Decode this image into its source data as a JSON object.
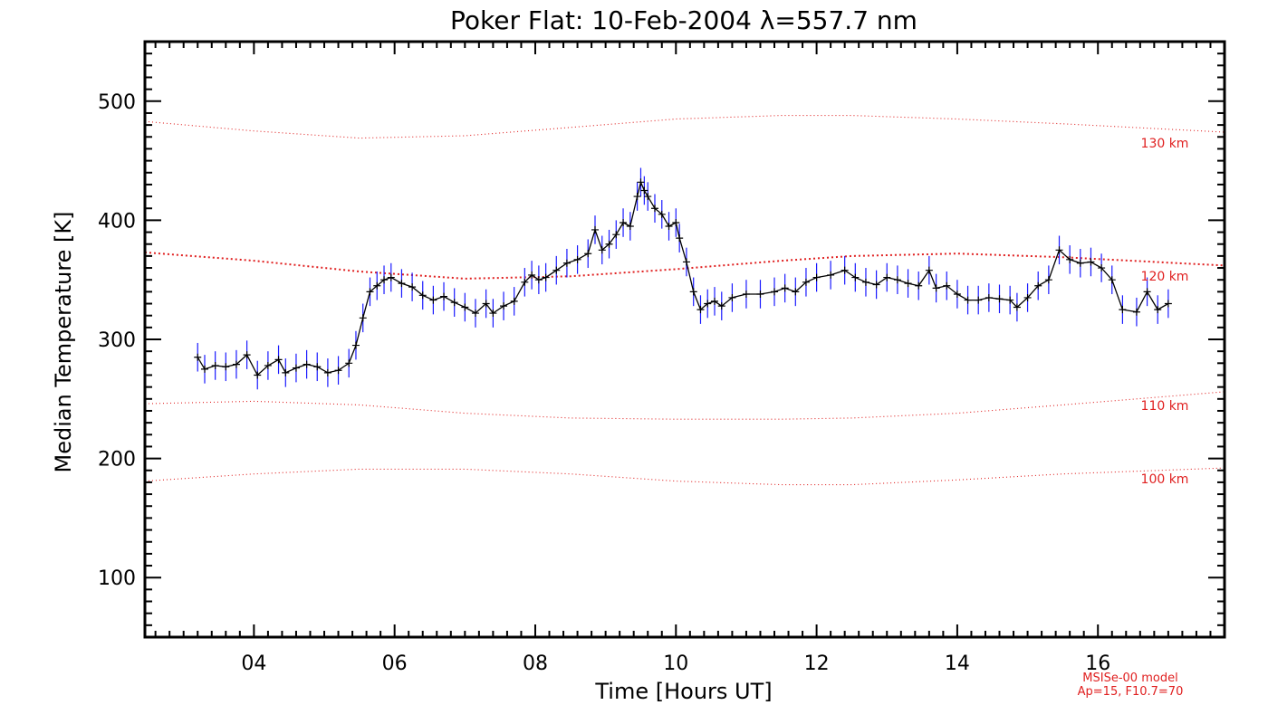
{
  "chart_data": {
    "type": "line",
    "title": "Poker Flat: 10-Feb-2004 λ=557.7 nm",
    "xlabel": "Time [Hours UT]",
    "ylabel": "Median Temperature [K]",
    "xlim": [
      2.45,
      17.8
    ],
    "ylim": [
      50,
      550
    ],
    "x_ticks": [
      4,
      6,
      8,
      10,
      12,
      14,
      16
    ],
    "x_tick_labels": [
      "04",
      "06",
      "08",
      "10",
      "12",
      "14",
      "16"
    ],
    "y_ticks": [
      100,
      200,
      300,
      400,
      500
    ],
    "y_tick_labels": [
      "100",
      "200",
      "300",
      "400",
      "500"
    ],
    "grid": false,
    "colors": {
      "data_line": "#000000",
      "error_bars": "#1a1aff",
      "model_lines": "#e02020",
      "axes": "#000000"
    },
    "series": [
      {
        "type": "line_with_error_bars",
        "error": 12,
        "points": [
          [
            3.2,
            285
          ],
          [
            3.3,
            275
          ],
          [
            3.45,
            278
          ],
          [
            3.6,
            277
          ],
          [
            3.75,
            279
          ],
          [
            3.9,
            287
          ],
          [
            4.05,
            270
          ],
          [
            4.2,
            278
          ],
          [
            4.35,
            283
          ],
          [
            4.45,
            272
          ],
          [
            4.6,
            276
          ],
          [
            4.75,
            279
          ],
          [
            4.9,
            277
          ],
          [
            5.05,
            272
          ],
          [
            5.2,
            274
          ],
          [
            5.35,
            280
          ],
          [
            5.45,
            295
          ],
          [
            5.55,
            318
          ],
          [
            5.65,
            340
          ],
          [
            5.75,
            345
          ],
          [
            5.85,
            350
          ],
          [
            5.95,
            352
          ],
          [
            6.1,
            347
          ],
          [
            6.25,
            344
          ],
          [
            6.4,
            337
          ],
          [
            6.55,
            333
          ],
          [
            6.7,
            336
          ],
          [
            6.85,
            331
          ],
          [
            7.0,
            327
          ],
          [
            7.15,
            322
          ],
          [
            7.3,
            330
          ],
          [
            7.4,
            322
          ],
          [
            7.55,
            328
          ],
          [
            7.7,
            332
          ],
          [
            7.85,
            348
          ],
          [
            7.95,
            354
          ],
          [
            8.05,
            350
          ],
          [
            8.15,
            352
          ],
          [
            8.3,
            358
          ],
          [
            8.45,
            364
          ],
          [
            8.6,
            367
          ],
          [
            8.75,
            372
          ],
          [
            8.85,
            392
          ],
          [
            8.95,
            375
          ],
          [
            9.05,
            380
          ],
          [
            9.15,
            388
          ],
          [
            9.25,
            398
          ],
          [
            9.35,
            395
          ],
          [
            9.45,
            420
          ],
          [
            9.5,
            432
          ],
          [
            9.55,
            425
          ],
          [
            9.6,
            420
          ],
          [
            9.7,
            410
          ],
          [
            9.8,
            405
          ],
          [
            9.9,
            395
          ],
          [
            10.0,
            398
          ],
          [
            10.05,
            385
          ],
          [
            10.15,
            365
          ],
          [
            10.25,
            340
          ],
          [
            10.35,
            325
          ],
          [
            10.45,
            330
          ],
          [
            10.55,
            332
          ],
          [
            10.65,
            328
          ],
          [
            10.8,
            335
          ],
          [
            11.0,
            338
          ],
          [
            11.2,
            338
          ],
          [
            11.4,
            340
          ],
          [
            11.55,
            343
          ],
          [
            11.7,
            340
          ],
          [
            11.85,
            348
          ],
          [
            12.0,
            352
          ],
          [
            12.2,
            354
          ],
          [
            12.4,
            358
          ],
          [
            12.55,
            352
          ],
          [
            12.7,
            348
          ],
          [
            12.85,
            346
          ],
          [
            13.0,
            352
          ],
          [
            13.15,
            350
          ],
          [
            13.3,
            347
          ],
          [
            13.45,
            345
          ],
          [
            13.6,
            358
          ],
          [
            13.7,
            343
          ],
          [
            13.85,
            345
          ],
          [
            14.0,
            338
          ],
          [
            14.15,
            333
          ],
          [
            14.3,
            333
          ],
          [
            14.45,
            335
          ],
          [
            14.6,
            334
          ],
          [
            14.75,
            333
          ],
          [
            14.85,
            327
          ],
          [
            15.0,
            335
          ],
          [
            15.15,
            345
          ],
          [
            15.3,
            350
          ],
          [
            15.45,
            375
          ],
          [
            15.6,
            367
          ],
          [
            15.75,
            364
          ],
          [
            15.9,
            365
          ],
          [
            16.05,
            360
          ],
          [
            16.2,
            350
          ],
          [
            16.35,
            325
          ],
          [
            16.55,
            323
          ],
          [
            16.7,
            340
          ],
          [
            16.85,
            325
          ],
          [
            17.0,
            330
          ]
        ]
      },
      {
        "name": "130 km",
        "type": "model",
        "points": [
          [
            2.45,
            483
          ],
          [
            4,
            475
          ],
          [
            5.5,
            469
          ],
          [
            7,
            471
          ],
          [
            8.5,
            478
          ],
          [
            10,
            485
          ],
          [
            11.5,
            488
          ],
          [
            12.5,
            488
          ],
          [
            14,
            485
          ],
          [
            15.5,
            481
          ],
          [
            17.8,
            474
          ]
        ]
      },
      {
        "name": "120 km",
        "type": "model",
        "points": [
          [
            2.45,
            373
          ],
          [
            4,
            366
          ],
          [
            5.5,
            357
          ],
          [
            7,
            351
          ],
          [
            8.5,
            353
          ],
          [
            10,
            359
          ],
          [
            11.5,
            366
          ],
          [
            12.5,
            370
          ],
          [
            14,
            372
          ],
          [
            15.5,
            369
          ],
          [
            17.8,
            362
          ]
        ]
      },
      {
        "name": "110 km",
        "type": "model",
        "points": [
          [
            2.45,
            246
          ],
          [
            4,
            248
          ],
          [
            5.5,
            245
          ],
          [
            7,
            238
          ],
          [
            8.5,
            234
          ],
          [
            10,
            233
          ],
          [
            11.5,
            233
          ],
          [
            12.5,
            234
          ],
          [
            14,
            238
          ],
          [
            15.5,
            245
          ],
          [
            17.8,
            256
          ]
        ]
      },
      {
        "name": "100 km",
        "type": "model",
        "points": [
          [
            2.45,
            181
          ],
          [
            4,
            187
          ],
          [
            5.5,
            191
          ],
          [
            7,
            191
          ],
          [
            8.5,
            187
          ],
          [
            10,
            181
          ],
          [
            11.5,
            178
          ],
          [
            12.5,
            178
          ],
          [
            14,
            182
          ],
          [
            15.5,
            187
          ],
          [
            17.8,
            192
          ]
        ]
      }
    ],
    "model_labels": [
      "130 km",
      "120 km",
      "110 km",
      "100 km"
    ],
    "annotation": [
      "MSISe-00 model",
      "Ap=15, F10.7=70"
    ]
  }
}
